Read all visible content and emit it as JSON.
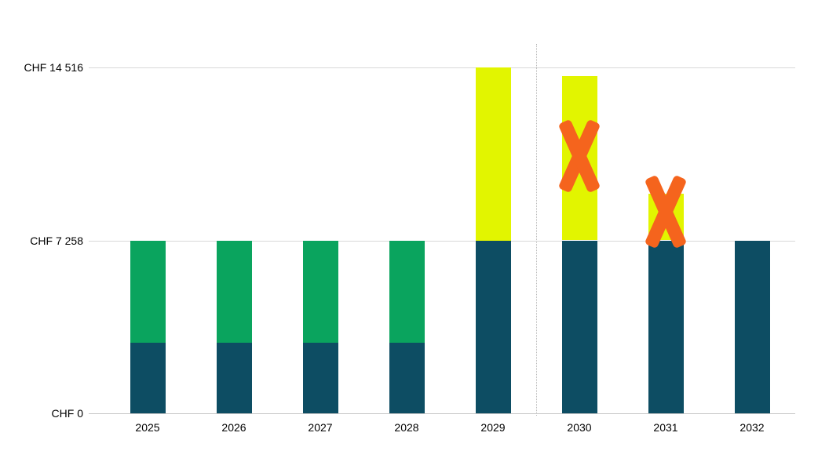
{
  "chart_data": {
    "type": "bar",
    "stacked": true,
    "title": "",
    "categories": [
      "2025",
      "2026",
      "2027",
      "2028",
      "2029",
      "2030",
      "2031",
      "2032"
    ],
    "series": [
      {
        "name": "paid-contribution",
        "color": "#0d4d63",
        "values": [
          2950,
          2950,
          2950,
          2950,
          7258,
          7258,
          7258,
          7258
        ]
      },
      {
        "name": "remaining-contribution",
        "color": "#0aa45e",
        "values": [
          4308,
          4308,
          4308,
          4308,
          0,
          0,
          0,
          0
        ]
      },
      {
        "name": "purchase-potential",
        "color": "#e2f500",
        "values": [
          0,
          0,
          0,
          0,
          7258,
          6900,
          1950,
          0
        ]
      }
    ],
    "ylim": [
      0,
      14516
    ],
    "yticks": [
      {
        "value": 0,
        "label": "CHF 0"
      },
      {
        "value": 7258,
        "label": "CHF 7 258"
      },
      {
        "value": 14516,
        "label": "CHF 14 516"
      }
    ],
    "xlabel": "",
    "ylabel": "",
    "grid": "horizontal",
    "legend": "none",
    "divider_after_category": "2029",
    "markers": [
      {
        "category": "2030",
        "value": 10800,
        "symbol": "X",
        "color": "#f5641d"
      },
      {
        "category": "2031",
        "value": 8450,
        "symbol": "X",
        "color": "#f5641d"
      }
    ]
  }
}
